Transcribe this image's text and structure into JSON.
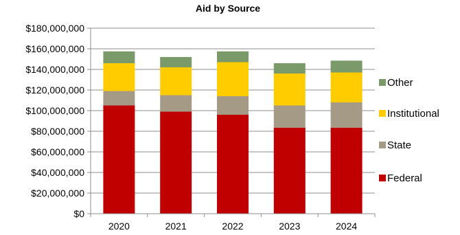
{
  "chart_data": {
    "type": "bar",
    "stacked": true,
    "title": "Aid by Source",
    "xlabel": "",
    "ylabel": "",
    "categories": [
      "2020",
      "2021",
      "2022",
      "2023",
      "2024"
    ],
    "ylim": [
      0,
      180000000
    ],
    "yticks": [
      0,
      20000000,
      40000000,
      60000000,
      80000000,
      100000000,
      120000000,
      140000000,
      160000000,
      180000000
    ],
    "ytick_labels": [
      "$0",
      "$20,000,000",
      "$40,000,000",
      "$60,000,000",
      "$80,000,000",
      "$100,000,000",
      "$120,000,000",
      "$140,000,000",
      "$160,000,000",
      "$180,000,000"
    ],
    "grid": true,
    "legend_position": "right",
    "series": [
      {
        "name": "Federal",
        "color": "#c00000",
        "values": [
          105000000,
          99000000,
          96000000,
          83500000,
          83500000
        ]
      },
      {
        "name": "State",
        "color": "#a59a86",
        "values": [
          14000000,
          16000000,
          18000000,
          21500000,
          24500000
        ]
      },
      {
        "name": "Institutional",
        "color": "#ffcc00",
        "values": [
          27000000,
          27000000,
          33000000,
          31000000,
          29000000
        ]
      },
      {
        "name": "Other",
        "color": "#7a9a6a",
        "values": [
          11500000,
          10000000,
          10500000,
          10000000,
          11500000
        ]
      }
    ]
  }
}
